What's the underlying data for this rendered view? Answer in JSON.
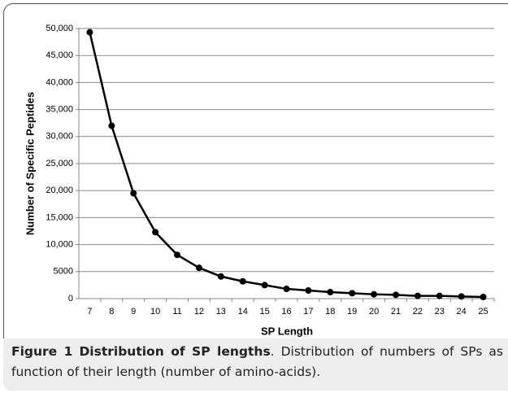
{
  "chart_data": {
    "type": "line",
    "x_label": "SP Length",
    "y_label": "Number of Specific Peptides",
    "categories": [
      "7",
      "8",
      "9",
      "10",
      "11",
      "12",
      "13",
      "14",
      "15",
      "16",
      "17",
      "18",
      "19",
      "20",
      "21",
      "22",
      "23",
      "24",
      "25"
    ],
    "series": [
      {
        "color": "#000000",
        "values": [
          49300,
          32000,
          19500,
          12300,
          8100,
          5700,
          4100,
          3200,
          2500,
          1800,
          1500,
          1200,
          1000,
          800,
          700,
          500,
          500,
          400,
          300
        ]
      }
    ],
    "ylim": [
      0,
      50000
    ],
    "yticks": [
      0,
      5000,
      {
        "value": 10000,
        "label": "10,000"
      },
      {
        "value": 15000,
        "label": "15,000"
      },
      {
        "value": 20000,
        "label": "20,000"
      },
      {
        "value": 25000,
        "label": "25,000"
      },
      {
        "value": 30000,
        "label": "30,000"
      },
      {
        "value": 35000,
        "label": "35,000"
      },
      {
        "value": 40000,
        "label": "40,000"
      },
      {
        "value": 45000,
        "label": "45,000"
      },
      {
        "value": 50000,
        "label": "50,000"
      }
    ],
    "grid": true
  },
  "caption": {
    "label": "Figure 1",
    "title": "Distribution of SP lengths",
    "text": ". Distribution of numbers of SPs as function of their length (number of amino-acids)."
  }
}
